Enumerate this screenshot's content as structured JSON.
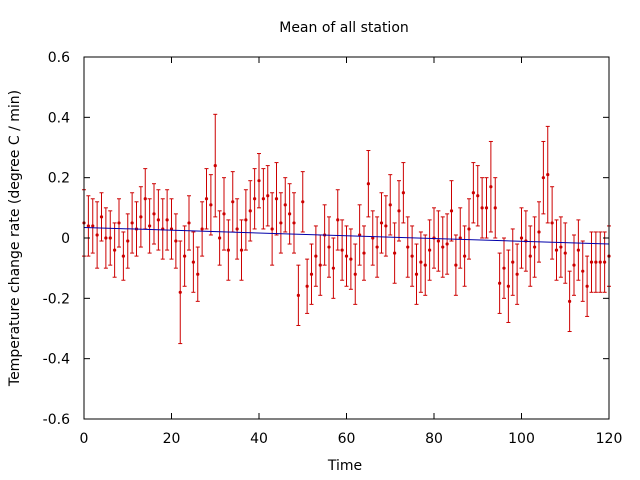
{
  "chart_data": {
    "type": "scatter",
    "title": "Mean of all station",
    "xlabel": "Time",
    "ylabel": "Temperature change rate (degree C / min)",
    "xlim": [
      0,
      120
    ],
    "ylim": [
      -0.6,
      0.6
    ],
    "x_ticks": [
      0,
      20,
      40,
      60,
      80,
      100,
      120
    ],
    "y_ticks": [
      -0.6,
      -0.4,
      -0.2,
      0,
      0.2,
      0.4,
      0.6
    ],
    "x_tick_labels": [
      "0",
      "20",
      "40",
      "60",
      "80",
      "100",
      "120"
    ],
    "y_tick_labels": [
      "-0.6",
      "-0.4",
      "-0.2",
      "0",
      "0.2",
      "0.4",
      "0.6"
    ],
    "grid": false,
    "series": [
      {
        "style": "points-with-errorbars",
        "color": "#cc0000",
        "x": [
          0,
          1,
          2,
          3,
          4,
          5,
          6,
          7,
          8,
          9,
          10,
          11,
          12,
          13,
          14,
          15,
          16,
          17,
          18,
          19,
          20,
          21,
          22,
          23,
          24,
          25,
          26,
          27,
          28,
          29,
          30,
          31,
          32,
          33,
          34,
          35,
          36,
          37,
          38,
          39,
          40,
          41,
          42,
          43,
          44,
          45,
          46,
          47,
          48,
          49,
          50,
          51,
          52,
          53,
          54,
          55,
          56,
          57,
          58,
          59,
          60,
          61,
          62,
          63,
          64,
          65,
          66,
          67,
          68,
          69,
          70,
          71,
          72,
          73,
          74,
          75,
          76,
          77,
          78,
          79,
          80,
          81,
          82,
          83,
          84,
          85,
          86,
          87,
          88,
          89,
          90,
          91,
          92,
          93,
          94,
          95,
          96,
          97,
          98,
          99,
          100,
          101,
          102,
          103,
          104,
          105,
          106,
          107,
          108,
          109,
          110,
          111,
          112,
          113,
          114,
          115,
          116,
          117,
          118,
          119,
          120
        ],
        "y": [
          0.05,
          0.04,
          0.04,
          0.01,
          0.07,
          0.0,
          0.0,
          -0.04,
          0.05,
          -0.06,
          -0.01,
          0.05,
          0.03,
          0.07,
          0.13,
          0.04,
          0.08,
          0.06,
          0.03,
          0.06,
          0.03,
          -0.01,
          -0.18,
          -0.06,
          0.05,
          -0.08,
          -0.12,
          0.03,
          0.13,
          0.11,
          0.24,
          0.0,
          0.08,
          -0.04,
          0.12,
          0.03,
          -0.04,
          0.06,
          0.09,
          0.13,
          0.19,
          0.13,
          0.14,
          0.03,
          0.13,
          0.05,
          0.11,
          0.08,
          0.05,
          -0.19,
          0.12,
          -0.16,
          -0.12,
          -0.06,
          -0.09,
          0.01,
          -0.03,
          -0.1,
          0.06,
          -0.04,
          -0.06,
          -0.07,
          -0.12,
          0.01,
          -0.05,
          0.18,
          0.0,
          -0.03,
          0.05,
          0.04,
          0.11,
          -0.05,
          0.09,
          0.15,
          -0.03,
          -0.06,
          -0.12,
          -0.08,
          -0.09,
          -0.04,
          0.0,
          -0.01,
          -0.03,
          -0.02,
          0.09,
          -0.09,
          0.0,
          -0.06,
          0.03,
          0.15,
          0.14,
          0.1,
          0.1,
          0.17,
          0.1,
          -0.15,
          -0.1,
          -0.16,
          -0.08,
          -0.12,
          0.0,
          -0.01,
          -0.06,
          -0.03,
          0.02,
          0.2,
          0.21,
          0.05,
          -0.04,
          -0.03,
          -0.05,
          -0.21,
          -0.09,
          -0.04,
          -0.11,
          -0.16,
          -0.08,
          -0.08,
          -0.08,
          -0.08,
          -0.06
        ],
        "error": [
          0.11,
          0.1,
          0.09,
          0.11,
          0.08,
          0.1,
          0.09,
          0.09,
          0.08,
          0.08,
          0.09,
          0.1,
          0.09,
          0.1,
          0.1,
          0.09,
          0.1,
          0.1,
          0.1,
          0.1,
          0.1,
          0.09,
          0.17,
          0.1,
          0.09,
          0.1,
          0.09,
          0.09,
          0.1,
          0.1,
          0.17,
          0.09,
          0.12,
          0.1,
          0.1,
          0.1,
          0.1,
          0.1,
          0.1,
          0.1,
          0.09,
          0.1,
          0.1,
          0.12,
          0.12,
          0.1,
          0.09,
          0.1,
          0.1,
          0.1,
          0.1,
          0.09,
          0.1,
          0.1,
          0.1,
          0.1,
          0.1,
          0.1,
          0.1,
          0.1,
          0.1,
          0.1,
          0.1,
          0.1,
          0.09,
          0.11,
          0.09,
          0.1,
          0.1,
          0.1,
          0.1,
          0.1,
          0.1,
          0.1,
          0.1,
          0.1,
          0.1,
          0.1,
          0.1,
          0.1,
          0.1,
          0.1,
          0.1,
          0.1,
          0.1,
          0.1,
          0.1,
          0.1,
          0.1,
          0.1,
          0.1,
          0.1,
          0.1,
          0.15,
          0.1,
          0.1,
          0.1,
          0.12,
          0.11,
          0.1,
          0.1,
          0.1,
          0.1,
          0.1,
          0.1,
          0.12,
          0.16,
          0.12,
          0.1,
          0.1,
          0.1,
          0.1,
          0.1,
          0.1,
          0.1,
          0.1,
          0.1,
          0.1,
          0.1,
          0.1,
          0.1
        ]
      },
      {
        "style": "line",
        "color": "#0000aa",
        "x": [
          0,
          120
        ],
        "y": [
          0.035,
          -0.02
        ]
      }
    ]
  }
}
